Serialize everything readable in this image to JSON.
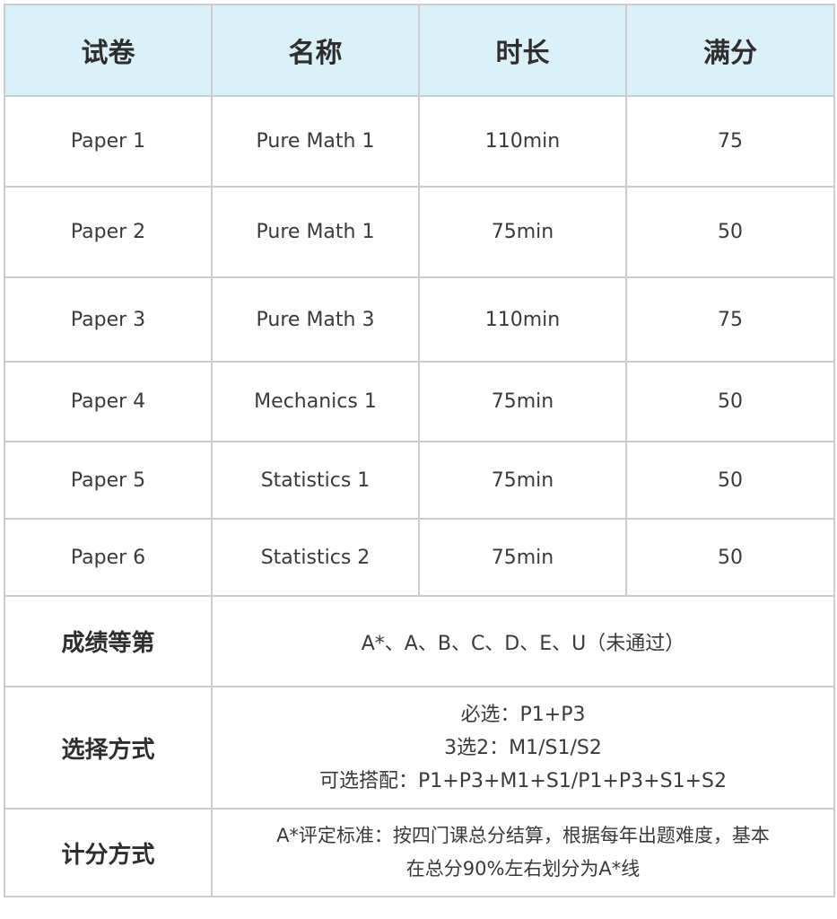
{
  "header": [
    "试卷",
    "名称",
    "时长",
    "满分"
  ],
  "rows": [
    [
      "Paper 1",
      "Pure Math 1",
      "110min",
      "75"
    ],
    [
      "Paper 2",
      "Pure Math 1",
      "75min",
      "50"
    ],
    [
      "Paper 3",
      "Pure Math 3",
      "110min",
      "75"
    ],
    [
      "Paper 4",
      "Mechanics 1",
      "75min",
      "50"
    ],
    [
      "Paper 5",
      "Statistics 1",
      "75min",
      "50"
    ],
    [
      "Paper 6",
      "Statistics 2",
      "75min",
      "50"
    ]
  ],
  "grades": {
    "label": "成绩等第",
    "value": "A*、A、B、C、D、E、U（未通过）"
  },
  "selection": {
    "label": "选择方式",
    "lines": [
      "必选：P1+P3",
      "3选2：M1/S1/S2",
      "可选搭配：P1+P3+M1+S1/P1+P3+S1+S2"
    ]
  },
  "scoring": {
    "label": "计分方式",
    "lines": [
      "A*评定标准：按四门课总分结算，根据每年出题难度，基本",
      "在总分90%左右划分为A*线"
    ]
  },
  "colors": {
    "header_bg": "#dcf0f8",
    "border": "#c9cdd1",
    "text": "#333333"
  }
}
